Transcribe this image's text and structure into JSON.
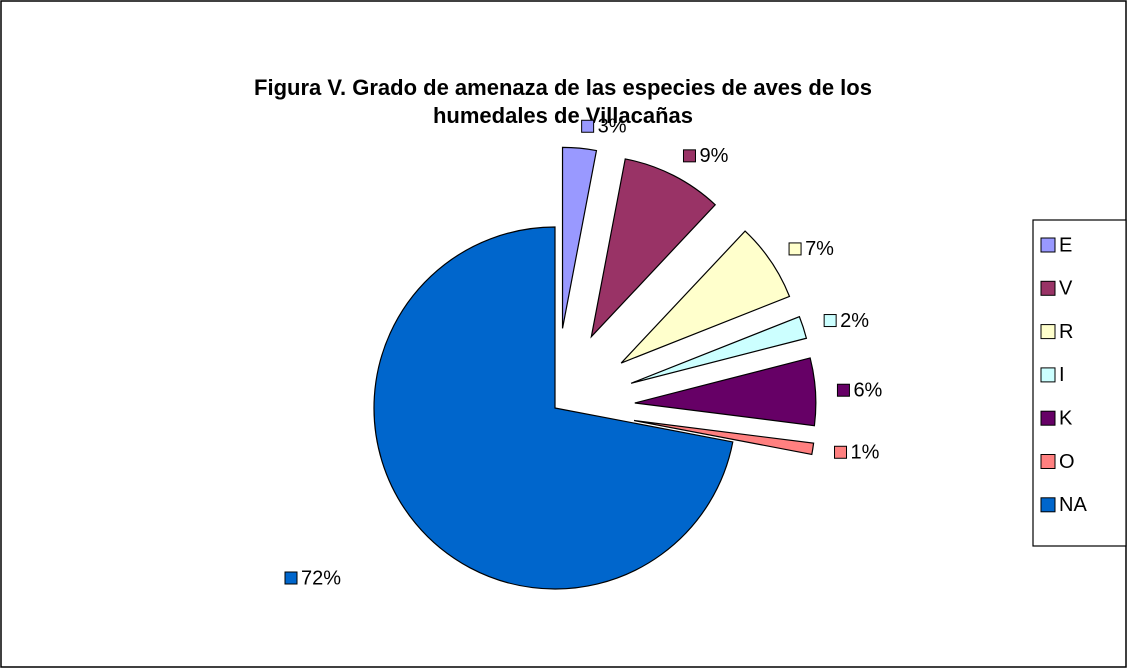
{
  "chart_data": {
    "type": "pie",
    "title": [
      "Figura V. Grado de amenaza de las especies de aves  de los",
      "humedales de Villacañas"
    ],
    "categories": [
      "E",
      "V",
      "R",
      "I",
      "K",
      "O",
      "NA"
    ],
    "values": [
      3,
      9,
      7,
      2,
      6,
      1,
      72
    ],
    "value_labels": [
      "3%",
      "9%",
      "7%",
      "2%",
      "6%",
      "1%",
      "72%"
    ],
    "colors": [
      "#9999ff",
      "#993366",
      "#ffffcc",
      "#ccffff",
      "#660066",
      "#ff8080",
      "#0066cc"
    ],
    "legend": "right"
  }
}
